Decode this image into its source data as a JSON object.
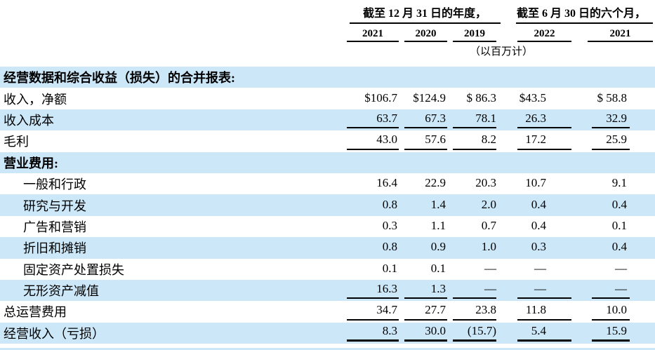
{
  "colors": {
    "row_highlight": "#cbe7f8",
    "rule": "#000000",
    "text": "#000000",
    "background": "#ffffff"
  },
  "header": {
    "groups": [
      {
        "label": "截至 12 月 31 日的年度，",
        "years": [
          "2021",
          "2020",
          "2019"
        ]
      },
      {
        "label": "截至 6 月 30 日的六个月，",
        "years": [
          "2022",
          "2021"
        ]
      }
    ],
    "unit_note": "（以百万计）"
  },
  "table": {
    "rows": [
      {
        "label": "经营数据和综合收益（损失）的合并报表:",
        "section": true,
        "values": []
      },
      {
        "label": "收入，净额",
        "values": [
          "$106.7",
          "$124.9",
          "$ 86.3",
          "$43.5",
          "$ 58.8"
        ]
      },
      {
        "label": "收入成本",
        "values": [
          "63.7",
          "67.3",
          "78.1",
          "26.3",
          "32.9"
        ],
        "underline": "thin"
      },
      {
        "label": "毛利",
        "values": [
          "43.0",
          "57.6",
          "8.2",
          "17.2",
          "25.9"
        ],
        "underline": "thin"
      },
      {
        "label": "营业费用:",
        "section": true,
        "values": []
      },
      {
        "label": "一般和行政",
        "indent": true,
        "values": [
          "16.4",
          "22.9",
          "20.3",
          "10.7",
          "9.1"
        ]
      },
      {
        "label": "研究与开发",
        "indent": true,
        "values": [
          "0.8",
          "1.4",
          "2.0",
          "0.4",
          "0.4"
        ]
      },
      {
        "label": "广告和营销",
        "indent": true,
        "values": [
          "0.3",
          "1.1",
          "0.7",
          "0.4",
          "0.1"
        ]
      },
      {
        "label": "折旧和摊销",
        "indent": true,
        "values": [
          "0.8",
          "0.9",
          "1.0",
          "0.3",
          "0.4"
        ]
      },
      {
        "label": "固定资产处置损失",
        "indent": true,
        "values": [
          "0.1",
          "0.1",
          "—",
          "—",
          "—"
        ]
      },
      {
        "label": "无形资产减值",
        "indent": true,
        "values": [
          "16.3",
          "1.3",
          "—",
          "—",
          "—"
        ],
        "underline": "thin"
      },
      {
        "label": "总运营费用",
        "values": [
          "34.7",
          "27.7",
          "23.8",
          "11.8",
          "10.0"
        ],
        "underline": "thin"
      },
      {
        "label": "经营收入（亏损）",
        "values": [
          "8.3",
          "30.0",
          "(15.7)",
          "5.4",
          "15.9"
        ],
        "underline": "thick"
      }
    ]
  }
}
